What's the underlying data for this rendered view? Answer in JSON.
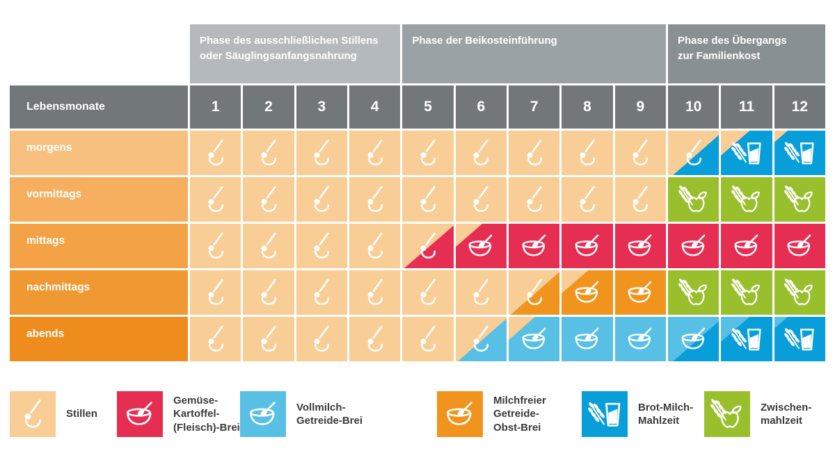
{
  "palette": {
    "header_dark": "#72787A",
    "phase1_bg": "#B3B9BC",
    "phase2_bg": "#9BA2A5",
    "phase3_bg": "#899094",
    "row_label_colors": [
      "#F7C07E",
      "#F5AF5E",
      "#F3A346",
      "#F09933",
      "#EE8D1D"
    ],
    "icon_white": "#FFFFFF",
    "legend_text": "#3B3B3A"
  },
  "chart_data": {
    "type": "table",
    "months_label": "Lebensmonate",
    "x_categories": [
      "1",
      "2",
      "3",
      "4",
      "5",
      "6",
      "7",
      "8",
      "9",
      "10",
      "11",
      "12"
    ],
    "phases": [
      {
        "label": "Phase des ausschließlichen Stillens\noder Säuglingsanfangsnahrung",
        "month_span": [
          1,
          4
        ]
      },
      {
        "label": "Phase der Beikosteinführung",
        "month_span": [
          5,
          9
        ]
      },
      {
        "label": "Phase des Übergangs\nzur Familienkost",
        "month_span": [
          10,
          12
        ]
      }
    ],
    "meals": {
      "stillen": {
        "label": "Stillen",
        "icon": "stillen",
        "color": "#F8CD96"
      },
      "gemuese_brei": {
        "label": "Gemüse-Kartoffel-(Fleisch)-Brei",
        "icon": "bowl",
        "color": "#E62E53"
      },
      "vollmilch_brei": {
        "label": "Vollmilch-Getreide-Brei",
        "icon": "bowl",
        "color": "#58BFE5"
      },
      "getreide_obst_brei": {
        "label": "Milchfreier Getreide-Obst-Brei",
        "icon": "bowl",
        "color": "#F0941E"
      },
      "brot_milch": {
        "label": "Brot-Milch-Mahlzeit",
        "icon": "grain_glass",
        "color": "#089EDA"
      },
      "zwischenmahlzeit": {
        "label": "Zwischenmahlzeit",
        "icon": "grain_apple",
        "color": "#9ABF2D"
      }
    },
    "rows": [
      {
        "label": "morgens",
        "cells": [
          "stillen",
          "stillen",
          "stillen",
          "stillen",
          "stillen",
          "stillen",
          "stillen",
          "stillen",
          "stillen",
          {
            "from": "stillen",
            "to": "brot_milch",
            "split": 55,
            "show": "from"
          },
          {
            "from": "stillen",
            "to": "brot_milch",
            "split": 28,
            "show": "to"
          },
          {
            "from": "stillen",
            "to": "brot_milch",
            "split": 13,
            "show": "to"
          }
        ]
      },
      {
        "label": "vormittags",
        "cells": [
          "stillen",
          "stillen",
          "stillen",
          "stillen",
          "stillen",
          "stillen",
          "stillen",
          "stillen",
          "stillen",
          "zwischenmahlzeit",
          "zwischenmahlzeit",
          "zwischenmahlzeit"
        ]
      },
      {
        "label": "mittags",
        "cells": [
          "stillen",
          "stillen",
          "stillen",
          "stillen",
          {
            "from": "stillen",
            "to": "gemuese_brei",
            "split": 52,
            "show": "from"
          },
          {
            "from": "stillen",
            "to": "gemuese_brei",
            "split": 26,
            "show": "to"
          },
          "gemuese_brei",
          "gemuese_brei",
          "gemuese_brei",
          "gemuese_brei",
          "gemuese_brei",
          "gemuese_brei"
        ]
      },
      {
        "label": "nachmittags",
        "cells": [
          "stillen",
          "stillen",
          "stillen",
          "stillen",
          "stillen",
          "stillen",
          {
            "from": "stillen",
            "to": "getreide_obst_brei",
            "split": 52,
            "show": "from"
          },
          {
            "from": "stillen",
            "to": "getreide_obst_brei",
            "split": 26,
            "show": "to"
          },
          "getreide_obst_brei",
          "zwischenmahlzeit",
          "zwischenmahlzeit",
          "zwischenmahlzeit"
        ]
      },
      {
        "label": "abends",
        "cells": [
          "stillen",
          "stillen",
          "stillen",
          "stillen",
          "stillen",
          {
            "from": "stillen",
            "to": "vollmilch_brei",
            "split": 52,
            "show": "from"
          },
          {
            "from": "stillen",
            "to": "vollmilch_brei",
            "split": 26,
            "show": "to"
          },
          "vollmilch_brei",
          "vollmilch_brei",
          {
            "from": "vollmilch_brei",
            "to": "brot_milch",
            "split": 55,
            "show": "from"
          },
          {
            "from": "vollmilch_brei",
            "to": "brot_milch",
            "split": 28,
            "show": "to"
          },
          {
            "from": "vollmilch_brei",
            "to": "brot_milch",
            "split": 13,
            "show": "to"
          }
        ]
      }
    ],
    "legend": [
      {
        "meal": "stillen",
        "label": "Stillen"
      },
      {
        "meal": "gemuese_brei",
        "label": "Gemüse-\nKartoffel-\n(Fleisch)-Brei"
      },
      {
        "meal": "vollmilch_brei",
        "label": "Vollmilch-\nGetreide-Brei"
      },
      {
        "meal": "getreide_obst_brei",
        "label": "Milchfreier\nGetreide-\nObst-Brei"
      },
      {
        "meal": "brot_milch",
        "label": "Brot-Milch-\nMahlzeit"
      },
      {
        "meal": "zwischenmahlzeit",
        "label": "Zwischen-\nmahlzeit"
      }
    ]
  }
}
